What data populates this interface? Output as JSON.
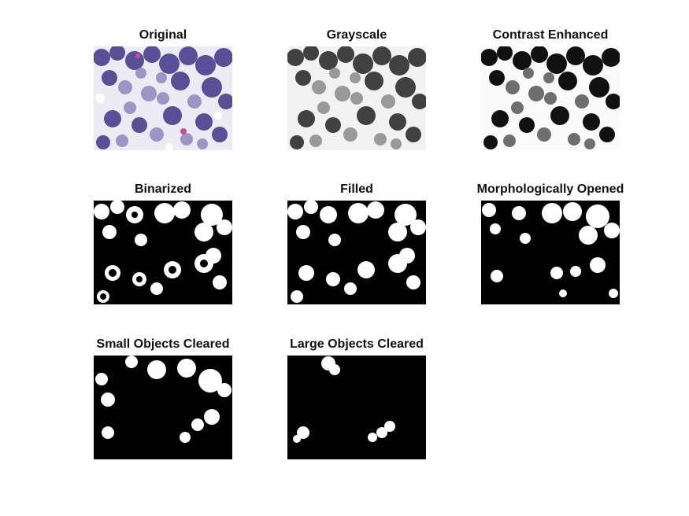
{
  "figure": {
    "panels": [
      {
        "title": "Original"
      },
      {
        "title": "Grayscale"
      },
      {
        "title": "Contrast Enhanced"
      },
      {
        "title": "Binarized"
      },
      {
        "title": "Filled"
      },
      {
        "title": "Morphologically Opened"
      },
      {
        "title": "Small Objects Cleared"
      },
      {
        "title": "Large Objects Cleared"
      }
    ]
  }
}
